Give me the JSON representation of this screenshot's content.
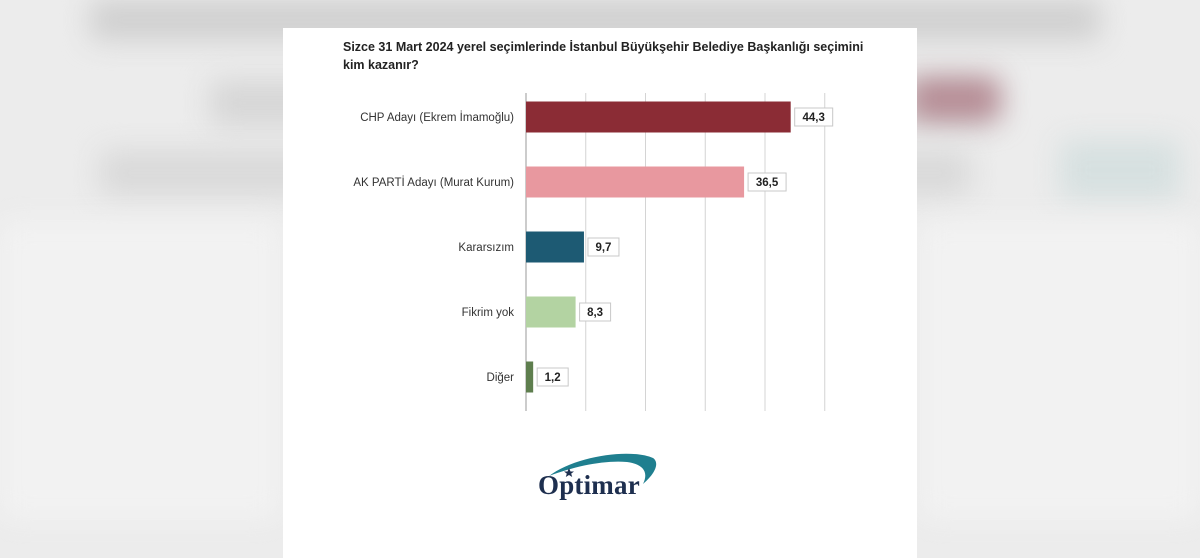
{
  "brand": {
    "logo_text": "Optimar"
  },
  "chart_data": {
    "type": "bar",
    "orientation": "horizontal",
    "title": "Sizce 31 Mart 2024 yerel seçimlerinde İstanbul Büyükşehir Belediye Başkanlığı seçimini kim kazanır?",
    "categories": [
      "CHP Adayı (Ekrem İmamoğlu)",
      "AK PARTİ Adayı (Murat Kurum)",
      "Kararsızım",
      "Fikrim yok",
      "Diğer"
    ],
    "values": [
      44.3,
      36.5,
      9.7,
      8.3,
      1.2
    ],
    "value_labels": [
      "44,3",
      "36,5",
      "9,7",
      "8,3",
      "1,2"
    ],
    "colors": [
      "#8b2c35",
      "#e8989f",
      "#1d5a73",
      "#b3d3a2",
      "#5e7e4e"
    ],
    "xlim": [
      0,
      50
    ],
    "grid": true,
    "legend": "none"
  }
}
